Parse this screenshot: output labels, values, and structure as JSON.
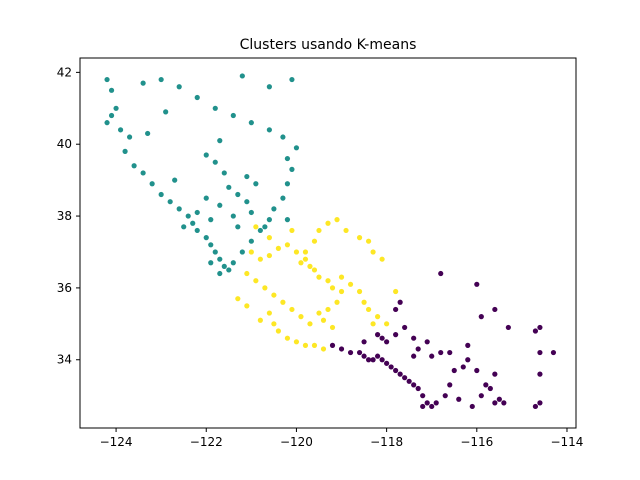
{
  "chart_data": {
    "type": "scatter",
    "title": "Clusters usando K-means",
    "xlabel": "",
    "ylabel": "",
    "xlim": [
      -124.8,
      -113.8
    ],
    "ylim": [
      32.1,
      42.4
    ],
    "x_ticks": [
      -124,
      -122,
      -120,
      -118,
      -116,
      -114
    ],
    "y_ticks": [
      34,
      36,
      38,
      40,
      42
    ],
    "x_tick_labels": [
      "−124",
      "−122",
      "−120",
      "−118",
      "−116",
      "−114"
    ],
    "y_tick_labels": [
      "34",
      "36",
      "38",
      "40",
      "42"
    ],
    "grid": false,
    "legend": "none",
    "series": [
      {
        "color": "#440154",
        "points": [
          [
            -119.2,
            34.4
          ],
          [
            -119.0,
            34.3
          ],
          [
            -118.8,
            34.2
          ],
          [
            -118.6,
            34.2
          ],
          [
            -118.5,
            34.1
          ],
          [
            -118.4,
            34.0
          ],
          [
            -118.3,
            34.0
          ],
          [
            -118.2,
            34.1
          ],
          [
            -118.1,
            34.0
          ],
          [
            -118.0,
            33.9
          ],
          [
            -117.9,
            33.8
          ],
          [
            -117.8,
            33.7
          ],
          [
            -117.7,
            33.6
          ],
          [
            -117.6,
            33.5
          ],
          [
            -117.5,
            33.4
          ],
          [
            -117.4,
            33.3
          ],
          [
            -117.3,
            33.2
          ],
          [
            -117.2,
            33.0
          ],
          [
            -117.1,
            32.8
          ],
          [
            -117.0,
            32.7
          ],
          [
            -117.2,
            32.7
          ],
          [
            -116.9,
            32.8
          ],
          [
            -116.7,
            33.0
          ],
          [
            -116.5,
            33.7
          ],
          [
            -116.3,
            33.8
          ],
          [
            -116.0,
            33.7
          ],
          [
            -115.8,
            33.3
          ],
          [
            -115.5,
            32.9
          ],
          [
            -115.6,
            32.8
          ],
          [
            -115.4,
            32.8
          ],
          [
            -117.4,
            34.1
          ],
          [
            -117.3,
            34.3
          ],
          [
            -117.1,
            34.5
          ],
          [
            -117.6,
            34.9
          ],
          [
            -117.8,
            34.7
          ],
          [
            -118.1,
            34.6
          ],
          [
            -118.2,
            34.7
          ],
          [
            -118.5,
            34.5
          ],
          [
            -117.0,
            34.1
          ],
          [
            -116.8,
            34.2
          ],
          [
            -116.2,
            34.0
          ],
          [
            -115.6,
            33.6
          ],
          [
            -114.6,
            34.9
          ],
          [
            -114.7,
            34.8
          ],
          [
            -114.6,
            34.2
          ],
          [
            -114.3,
            34.2
          ],
          [
            -114.6,
            33.6
          ],
          [
            -114.6,
            32.8
          ],
          [
            -114.7,
            32.7
          ],
          [
            -116.8,
            36.4
          ],
          [
            -116.0,
            36.1
          ],
          [
            -115.6,
            35.4
          ],
          [
            -115.3,
            34.9
          ],
          [
            -116.2,
            34.4
          ],
          [
            -115.9,
            35.2
          ],
          [
            -117.7,
            35.6
          ],
          [
            -117.8,
            35.4
          ],
          [
            -118.0,
            34.5
          ],
          [
            -117.4,
            34.6
          ],
          [
            -116.6,
            34.2
          ],
          [
            -116.6,
            33.3
          ],
          [
            -116.4,
            32.9
          ],
          [
            -116.1,
            32.7
          ],
          [
            -115.9,
            33.0
          ],
          [
            -115.7,
            33.2
          ]
        ]
      },
      {
        "color": "#21918c",
        "points": [
          [
            -124.2,
            41.8
          ],
          [
            -124.1,
            41.5
          ],
          [
            -124.0,
            41.0
          ],
          [
            -124.1,
            40.8
          ],
          [
            -124.2,
            40.6
          ],
          [
            -123.9,
            40.4
          ],
          [
            -123.7,
            40.2
          ],
          [
            -123.8,
            39.8
          ],
          [
            -123.6,
            39.4
          ],
          [
            -123.4,
            39.2
          ],
          [
            -123.2,
            38.9
          ],
          [
            -123.0,
            38.6
          ],
          [
            -122.8,
            38.4
          ],
          [
            -122.6,
            38.2
          ],
          [
            -122.4,
            38.0
          ],
          [
            -122.3,
            37.8
          ],
          [
            -122.2,
            37.6
          ],
          [
            -122.0,
            37.4
          ],
          [
            -121.9,
            37.2
          ],
          [
            -121.8,
            37.0
          ],
          [
            -121.7,
            36.8
          ],
          [
            -121.6,
            36.6
          ],
          [
            -121.5,
            36.5
          ],
          [
            -121.4,
            36.7
          ],
          [
            -121.2,
            37.0
          ],
          [
            -121.0,
            37.3
          ],
          [
            -120.8,
            37.6
          ],
          [
            -120.6,
            37.9
          ],
          [
            -120.5,
            38.2
          ],
          [
            -120.3,
            38.5
          ],
          [
            -120.2,
            38.9
          ],
          [
            -120.1,
            39.3
          ],
          [
            -120.2,
            39.6
          ],
          [
            -120.0,
            39.9
          ],
          [
            -120.3,
            40.2
          ],
          [
            -120.6,
            40.4
          ],
          [
            -121.0,
            40.6
          ],
          [
            -121.4,
            40.8
          ],
          [
            -121.8,
            41.0
          ],
          [
            -122.2,
            41.3
          ],
          [
            -122.6,
            41.6
          ],
          [
            -123.0,
            41.8
          ],
          [
            -123.4,
            41.7
          ],
          [
            -122.0,
            39.7
          ],
          [
            -121.8,
            39.5
          ],
          [
            -121.6,
            39.2
          ],
          [
            -121.5,
            38.8
          ],
          [
            -121.3,
            38.6
          ],
          [
            -121.1,
            38.4
          ],
          [
            -121.0,
            38.1
          ],
          [
            -121.4,
            38.0
          ],
          [
            -121.7,
            38.3
          ],
          [
            -122.0,
            38.5
          ],
          [
            -122.2,
            38.1
          ],
          [
            -122.5,
            37.7
          ],
          [
            -121.9,
            37.9
          ],
          [
            -121.3,
            37.7
          ],
          [
            -120.9,
            38.9
          ],
          [
            -121.1,
            39.1
          ],
          [
            -121.7,
            40.1
          ],
          [
            -120.6,
            41.6
          ],
          [
            -120.1,
            41.8
          ],
          [
            -121.2,
            41.9
          ],
          [
            -122.9,
            40.9
          ],
          [
            -123.3,
            40.3
          ],
          [
            -122.7,
            39.0
          ],
          [
            -121.9,
            36.7
          ],
          [
            -121.7,
            36.4
          ],
          [
            -120.7,
            37.7
          ],
          [
            -120.2,
            37.9
          ]
        ]
      },
      {
        "color": "#fde725",
        "points": [
          [
            -121.0,
            37.0
          ],
          [
            -120.8,
            36.8
          ],
          [
            -120.6,
            36.9
          ],
          [
            -120.4,
            37.1
          ],
          [
            -120.2,
            37.2
          ],
          [
            -120.0,
            37.0
          ],
          [
            -119.8,
            36.8
          ],
          [
            -119.7,
            36.6
          ],
          [
            -119.6,
            36.5
          ],
          [
            -119.5,
            36.3
          ],
          [
            -119.3,
            36.2
          ],
          [
            -119.2,
            36.0
          ],
          [
            -119.0,
            35.9
          ],
          [
            -119.1,
            35.6
          ],
          [
            -119.3,
            35.4
          ],
          [
            -119.5,
            35.3
          ],
          [
            -119.7,
            35.0
          ],
          [
            -119.9,
            35.2
          ],
          [
            -120.1,
            35.4
          ],
          [
            -120.3,
            35.6
          ],
          [
            -120.5,
            35.8
          ],
          [
            -120.7,
            36.0
          ],
          [
            -120.9,
            36.2
          ],
          [
            -121.1,
            36.4
          ],
          [
            -120.6,
            35.3
          ],
          [
            -120.5,
            35.0
          ],
          [
            -120.4,
            34.8
          ],
          [
            -120.2,
            34.6
          ],
          [
            -120.0,
            34.5
          ],
          [
            -119.8,
            34.4
          ],
          [
            -119.6,
            34.4
          ],
          [
            -119.4,
            34.3
          ],
          [
            -119.9,
            36.7
          ],
          [
            -119.8,
            37.0
          ],
          [
            -119.6,
            37.3
          ],
          [
            -119.5,
            37.6
          ],
          [
            -119.3,
            37.8
          ],
          [
            -119.1,
            37.9
          ],
          [
            -118.9,
            37.6
          ],
          [
            -118.6,
            37.4
          ],
          [
            -118.4,
            37.3
          ],
          [
            -118.3,
            37.0
          ],
          [
            -118.1,
            36.8
          ],
          [
            -119.0,
            36.3
          ],
          [
            -118.8,
            36.1
          ],
          [
            -118.6,
            35.9
          ],
          [
            -118.5,
            35.6
          ],
          [
            -118.4,
            35.4
          ],
          [
            -118.2,
            35.2
          ],
          [
            -118.0,
            35.0
          ],
          [
            -119.4,
            35.1
          ],
          [
            -119.2,
            34.9
          ],
          [
            -121.3,
            35.7
          ],
          [
            -121.1,
            35.5
          ],
          [
            -120.8,
            35.1
          ],
          [
            -120.1,
            37.6
          ],
          [
            -120.6,
            37.4
          ],
          [
            -120.9,
            37.7
          ],
          [
            -118.3,
            35.0
          ],
          [
            -117.8,
            35.9
          ]
        ]
      }
    ]
  }
}
